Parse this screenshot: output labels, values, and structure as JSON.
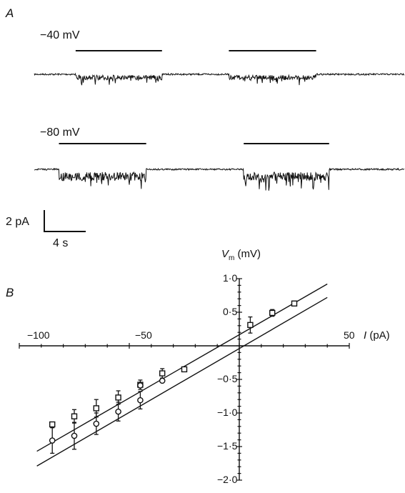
{
  "panel_a": {
    "label": "A",
    "traces": [
      {
        "voltage_label": "−40 mV",
        "pulses": [
          [
            4.3,
            13.6
          ],
          [
            20.8,
            30.2
          ]
        ],
        "noise": 0.55,
        "drop": 0.55
      },
      {
        "voltage_label": "−80 mV",
        "pulses": [
          [
            2.5,
            11.9
          ],
          [
            22.4,
            31.6
          ]
        ],
        "noise": 1.0,
        "drop": 1.2
      }
    ],
    "scale_bar": {
      "current_label": "2 pA",
      "time_label": "4 s",
      "current_pA": 2,
      "time_s": 4
    }
  },
  "panel_b": {
    "label": "B",
    "y_axis_label": "V",
    "y_axis_subscript": "m",
    "y_axis_unit": " (mV)",
    "x_axis_label": "I",
    "x_axis_unit": " (pA)",
    "x_tick_labels": [
      "−100",
      "−50",
      "50"
    ],
    "y_tick_labels": [
      "1·0",
      "0·5",
      "−0·5",
      "−1·0",
      "−1·5",
      "−2·0"
    ]
  },
  "chart_data": {
    "type": "scatter",
    "xlabel": "I (pA)",
    "ylabel": "Vm (mV)",
    "xlim": [
      -100,
      50
    ],
    "ylim": [
      -2.0,
      1.0
    ],
    "x_ticks": [
      -100,
      -50,
      50
    ],
    "y_ticks": [
      1.0,
      0.5,
      -0.5,
      -1.0,
      -1.5,
      -2.0
    ],
    "series": [
      {
        "marker": "square",
        "points": [
          {
            "x": -85,
            "y": -1.17,
            "err": 0
          },
          {
            "x": -75,
            "y": -1.05,
            "err": 0.1
          },
          {
            "x": -65,
            "y": -0.93,
            "err": 0.13
          },
          {
            "x": -55,
            "y": -0.77,
            "err": 0.1
          },
          {
            "x": -45,
            "y": -0.58,
            "err": 0.07
          },
          {
            "x": -35,
            "y": -0.41,
            "err": 0.07
          },
          {
            "x": -25,
            "y": -0.35,
            "err": 0
          },
          {
            "x": 5,
            "y": 0.31,
            "err": 0.12
          },
          {
            "x": 15,
            "y": 0.49,
            "err": 0.05
          },
          {
            "x": 25,
            "y": 0.63,
            "err": 0
          }
        ]
      },
      {
        "marker": "circle",
        "points": [
          {
            "x": -85,
            "y": -1.41,
            "err": 0.19
          },
          {
            "x": -75,
            "y": -1.34,
            "err": 0.2
          },
          {
            "x": -65,
            "y": -1.16,
            "err": 0.16
          },
          {
            "x": -55,
            "y": -0.98,
            "err": 0.14
          },
          {
            "x": -45,
            "y": -0.81,
            "err": 0.13
          },
          {
            "x": -35,
            "y": -0.52,
            "err": 0
          },
          {
            "x": -45,
            "y": -0.59,
            "err": 0
          }
        ]
      }
    ],
    "fit_lines": [
      {
        "x1": -92,
        "y1": -1.57,
        "x2": 40,
        "y2": 0.92
      },
      {
        "x1": -92,
        "y1": -1.79,
        "x2": 40,
        "y2": 0.72
      }
    ]
  }
}
